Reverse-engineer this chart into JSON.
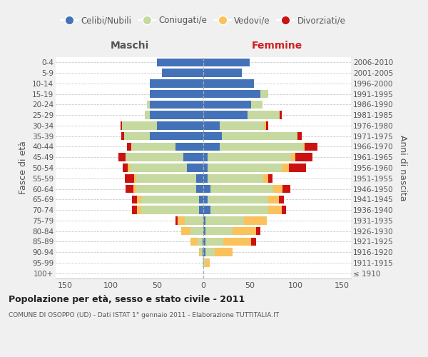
{
  "age_groups": [
    "100+",
    "95-99",
    "90-94",
    "85-89",
    "80-84",
    "75-79",
    "70-74",
    "65-69",
    "60-64",
    "55-59",
    "50-54",
    "45-49",
    "40-44",
    "35-39",
    "30-34",
    "25-29",
    "20-24",
    "15-19",
    "10-14",
    "5-9",
    "0-4"
  ],
  "birth_years": [
    "≤ 1910",
    "1911-1915",
    "1916-1920",
    "1921-1925",
    "1926-1930",
    "1931-1935",
    "1936-1940",
    "1941-1945",
    "1946-1950",
    "1951-1955",
    "1956-1960",
    "1961-1965",
    "1966-1970",
    "1971-1975",
    "1976-1980",
    "1981-1985",
    "1986-1990",
    "1991-1995",
    "1996-2000",
    "2001-2005",
    "2006-2010"
  ],
  "male": {
    "celibi": [
      0,
      0,
      1,
      1,
      0,
      0,
      5,
      5,
      8,
      8,
      18,
      22,
      30,
      58,
      50,
      58,
      58,
      58,
      58,
      45,
      50
    ],
    "coniugati": [
      0,
      1,
      2,
      5,
      14,
      20,
      62,
      62,
      65,
      65,
      62,
      62,
      48,
      28,
      38,
      5,
      3,
      0,
      0,
      0,
      0
    ],
    "vedovi": [
      0,
      0,
      2,
      8,
      10,
      8,
      5,
      5,
      3,
      2,
      2,
      0,
      0,
      0,
      0,
      0,
      0,
      0,
      0,
      0,
      0
    ],
    "divorziati": [
      0,
      0,
      0,
      0,
      0,
      2,
      5,
      5,
      8,
      10,
      5,
      8,
      5,
      3,
      2,
      0,
      0,
      0,
      0,
      0,
      0
    ]
  },
  "female": {
    "nubili": [
      0,
      0,
      2,
      2,
      2,
      2,
      8,
      5,
      8,
      5,
      5,
      5,
      18,
      20,
      18,
      48,
      52,
      62,
      55,
      42,
      50
    ],
    "coniugate": [
      0,
      2,
      10,
      20,
      30,
      42,
      62,
      65,
      68,
      60,
      80,
      90,
      90,
      82,
      48,
      35,
      12,
      8,
      0,
      0,
      0
    ],
    "vedove": [
      0,
      5,
      20,
      30,
      25,
      25,
      15,
      12,
      10,
      5,
      8,
      5,
      2,
      0,
      2,
      0,
      0,
      0,
      0,
      0,
      0
    ],
    "divorziate": [
      0,
      0,
      0,
      5,
      5,
      0,
      5,
      5,
      8,
      5,
      18,
      18,
      14,
      5,
      2,
      2,
      0,
      0,
      0,
      0,
      0
    ]
  },
  "colors": {
    "celibi": "#4472b8",
    "coniugati": "#c6d9a0",
    "vedovi": "#f9c25c",
    "divorziati": "#cc1111"
  },
  "xlim": 160,
  "maschi_label": "Maschi",
  "femmine_label": "Femmine",
  "ylabel_left": "Fasce di età",
  "ylabel_right": "Anni di nascita",
  "title": "Popolazione per età, sesso e stato civile - 2011",
  "subtitle": "COMUNE DI OSOPPO (UD) - Dati ISTAT 1° gennaio 2011 - Elaborazione TUTTITALIA.IT",
  "legend_labels": [
    "Celibi/Nubili",
    "Coniugati/e",
    "Vedovi/e",
    "Divorziati/e"
  ],
  "bg_color": "#f0f0f0",
  "plot_bg_color": "#ffffff",
  "grid_color": "#cccccc",
  "maschi_color": "#555555",
  "femmine_color": "#cc2222",
  "label_color": "#555555",
  "title_color": "#222222"
}
